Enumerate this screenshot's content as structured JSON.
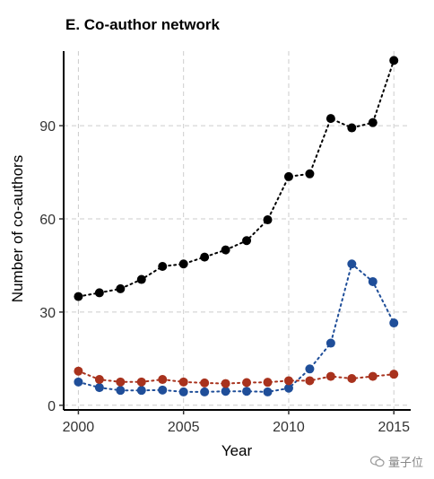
{
  "chart_data": {
    "type": "line",
    "title": "E. Co-author network",
    "xlabel": "Year",
    "ylabel": "Number of co-authors",
    "xlim": [
      1999.3,
      2015.8
    ],
    "ylim": [
      -1.5,
      114
    ],
    "x_ticks": [
      2000,
      2005,
      2010,
      2015
    ],
    "y_ticks": [
      0,
      30,
      60,
      90
    ],
    "x_tick_labels": [
      "2000",
      "2005",
      "2010",
      "2015"
    ],
    "y_tick_labels": [
      "0",
      "30",
      "60",
      "90"
    ],
    "grid": true,
    "legend": "none",
    "line_style": "dotted",
    "x": [
      2000,
      2001,
      2002,
      2003,
      2004,
      2005,
      2006,
      2007,
      2008,
      2009,
      2010,
      2011,
      2012,
      2013,
      2014,
      2015
    ],
    "series": [
      {
        "color": "#000000",
        "values": [
          35,
          36.2,
          37.5,
          40.5,
          44.7,
          45.5,
          47.7,
          50,
          53,
          59.7,
          73.6,
          74.5,
          92.3,
          89.3,
          91,
          111
        ]
      },
      {
        "color": "#1f4e99",
        "values": [
          7.5,
          5.7,
          4.8,
          4.8,
          4.9,
          4.3,
          4.3,
          4.5,
          4.5,
          4.3,
          5.5,
          11.7,
          20,
          45.5,
          39.8,
          26.5
        ]
      },
      {
        "color": "#a8321d",
        "values": [
          11,
          8.3,
          7.5,
          7.5,
          8.3,
          7.5,
          7.2,
          7,
          7.3,
          7.4,
          7.9,
          7.9,
          9.3,
          8.6,
          9.3,
          10
        ]
      }
    ]
  },
  "watermark": {
    "icon": "wechat-icon",
    "text": "量子位"
  }
}
